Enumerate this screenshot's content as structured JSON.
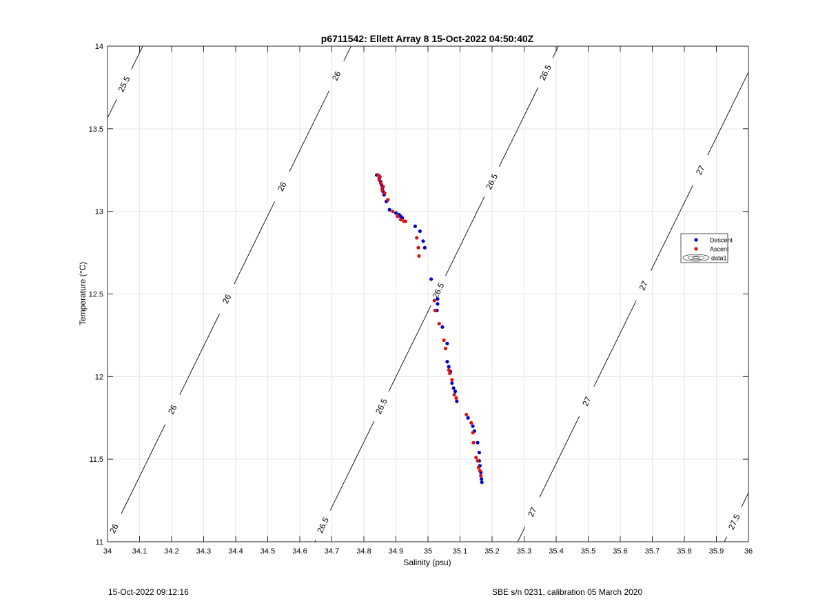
{
  "chart_data": {
    "type": "scatter",
    "title": "p6711542: Ellett Array 8 15-Oct-2022 04:50:40Z",
    "xlabel": "Salinity (psu)",
    "ylabel": "Temperature (°C)",
    "xlim": [
      34,
      36
    ],
    "ylim": [
      11,
      14
    ],
    "xticks": [
      34,
      34.1,
      34.2,
      34.3,
      34.4,
      34.5,
      34.6,
      34.7,
      34.8,
      34.9,
      35,
      35.1,
      35.2,
      35.3,
      35.4,
      35.5,
      35.6,
      35.7,
      35.8,
      35.9,
      36
    ],
    "xtick_labels": [
      "34",
      "34.1",
      "34.2",
      "34.3",
      "34.4",
      "34.5",
      "34.6",
      "34.7",
      "34.8",
      "34.9",
      "35",
      "35.1",
      "35.2",
      "35.3",
      "35.4",
      "35.5",
      "35.6",
      "35.7",
      "35.8",
      "35.9",
      "36"
    ],
    "yticks": [
      11,
      11.5,
      12,
      12.5,
      13,
      13.5,
      14
    ],
    "ytick_labels": [
      "11",
      "11.5",
      "12",
      "12.5",
      "13",
      "13.5",
      "14"
    ],
    "grid": true,
    "legend_position": "right",
    "series": [
      {
        "name": "Descent",
        "color": "#0000cc",
        "points": [
          [
            34.84,
            13.22
          ],
          [
            34.848,
            13.2
          ],
          [
            34.852,
            13.18
          ],
          [
            34.855,
            13.16
          ],
          [
            34.858,
            13.14
          ],
          [
            34.86,
            13.12
          ],
          [
            34.863,
            13.1
          ],
          [
            34.87,
            13.06
          ],
          [
            34.88,
            13.01
          ],
          [
            34.9,
            12.99
          ],
          [
            34.91,
            12.98
          ],
          [
            34.915,
            12.97
          ],
          [
            34.92,
            12.96
          ],
          [
            34.96,
            12.91
          ],
          [
            34.975,
            12.88
          ],
          [
            34.985,
            12.82
          ],
          [
            34.99,
            12.78
          ],
          [
            35.01,
            12.59
          ],
          [
            35.03,
            12.47
          ],
          [
            35.03,
            12.44
          ],
          [
            35.028,
            12.4
          ],
          [
            35.045,
            12.3
          ],
          [
            35.06,
            12.2
          ],
          [
            35.06,
            12.09
          ],
          [
            35.065,
            12.06
          ],
          [
            35.07,
            12.03
          ],
          [
            35.075,
            11.96
          ],
          [
            35.08,
            11.93
          ],
          [
            35.085,
            11.91
          ],
          [
            35.09,
            11.85
          ],
          [
            35.125,
            11.75
          ],
          [
            35.14,
            11.7
          ],
          [
            35.145,
            11.67
          ],
          [
            35.155,
            11.6
          ],
          [
            35.16,
            11.54
          ],
          [
            35.16,
            11.49
          ],
          [
            35.162,
            11.46
          ],
          [
            35.165,
            11.42
          ],
          [
            35.167,
            11.38
          ],
          [
            35.168,
            11.36
          ]
        ]
      },
      {
        "name": "Ascent",
        "color": "#dd1111",
        "points": [
          [
            34.845,
            13.22
          ],
          [
            34.85,
            13.21
          ],
          [
            34.848,
            13.19
          ],
          [
            34.853,
            13.17
          ],
          [
            34.86,
            13.15
          ],
          [
            34.857,
            13.13
          ],
          [
            34.865,
            13.11
          ],
          [
            34.875,
            13.07
          ],
          [
            34.89,
            13.0
          ],
          [
            34.905,
            12.97
          ],
          [
            34.915,
            12.95
          ],
          [
            34.925,
            12.94
          ],
          [
            34.93,
            12.94
          ],
          [
            34.965,
            12.84
          ],
          [
            34.97,
            12.78
          ],
          [
            34.972,
            12.73
          ],
          [
            35.02,
            12.46
          ],
          [
            35.022,
            12.4
          ],
          [
            35.035,
            12.32
          ],
          [
            35.05,
            12.22
          ],
          [
            35.055,
            12.17
          ],
          [
            35.065,
            12.04
          ],
          [
            35.068,
            12.02
          ],
          [
            35.075,
            11.98
          ],
          [
            35.082,
            11.89
          ],
          [
            35.088,
            11.87
          ],
          [
            35.12,
            11.77
          ],
          [
            35.135,
            11.72
          ],
          [
            35.14,
            11.66
          ],
          [
            35.142,
            11.6
          ],
          [
            35.15,
            11.51
          ],
          [
            35.155,
            11.49
          ],
          [
            35.158,
            11.45
          ],
          [
            35.165,
            11.4
          ],
          [
            35.162,
            11.43
          ]
        ]
      }
    ],
    "legend_extra_entry": "data1",
    "isopycnals": [
      {
        "value": 25.5,
        "s_at_t11": 33.35,
        "s_at_t14": 34.11,
        "labels": [
          {
            "text": "25.5",
            "t": 13.77
          }
        ]
      },
      {
        "value": 26,
        "s_at_t11": 34.0,
        "s_at_t14": 34.76,
        "labels": [
          {
            "text": "26",
            "t": 11.08
          },
          {
            "text": "26",
            "t": 11.8
          },
          {
            "text": "26",
            "t": 12.47
          },
          {
            "text": "26",
            "t": 13.15
          },
          {
            "text": "26",
            "t": 13.82
          }
        ]
      },
      {
        "value": 26.5,
        "s_at_t11": 34.647,
        "s_at_t14": 35.407,
        "labels": [
          {
            "text": "26.5",
            "t": 11.1
          },
          {
            "text": "26.5",
            "t": 11.82
          },
          {
            "text": "26.5",
            "t": 12.52
          },
          {
            "text": "26.5",
            "t": 13.18
          },
          {
            "text": "26.5",
            "t": 13.84
          }
        ]
      },
      {
        "value": 27,
        "s_at_t11": 35.28,
        "s_at_t14": 36.04,
        "labels": [
          {
            "text": "27",
            "t": 11.18
          },
          {
            "text": "27",
            "t": 11.85
          },
          {
            "text": "27",
            "t": 12.55
          },
          {
            "text": "27",
            "t": 13.25
          }
        ]
      },
      {
        "value": 27.5,
        "s_at_t11": 35.925,
        "s_at_t14": 36.685,
        "labels": [
          {
            "text": "27.5",
            "t": 11.12
          }
        ]
      }
    ]
  },
  "footer": {
    "left": "15-Oct-2022 09:12:16",
    "right": "SBE s/n 0231, calibration 05 March 2020"
  }
}
